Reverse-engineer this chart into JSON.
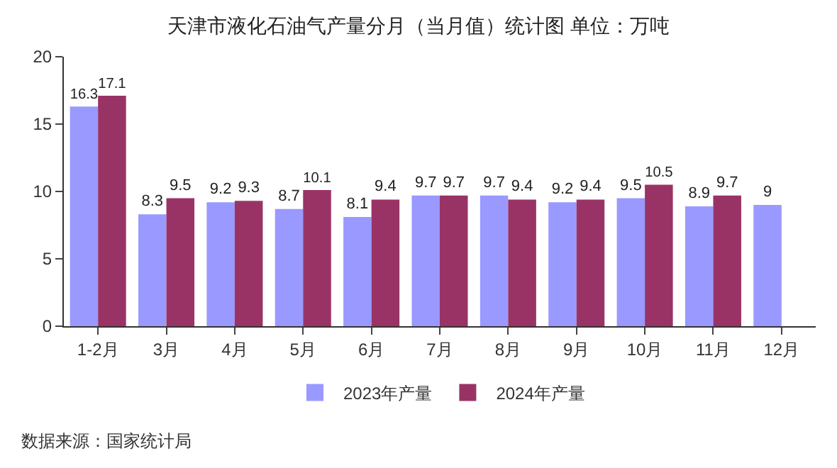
{
  "chart_data": {
    "type": "bar",
    "title": "天津市液化石油气产量分月（当月值）统计图 单位：万吨",
    "categories": [
      "1-2月",
      "3月",
      "4月",
      "5月",
      "6月",
      "7月",
      "8月",
      "9月",
      "10月",
      "11月",
      "12月"
    ],
    "series": [
      {
        "name": "2023年产量",
        "color": "#9999ff",
        "values": [
          16.3,
          8.3,
          9.2,
          8.7,
          8.1,
          9.7,
          9.7,
          9.2,
          9.5,
          8.9,
          9
        ]
      },
      {
        "name": "2024年产量",
        "color": "#993366",
        "values": [
          17.1,
          9.5,
          9.3,
          10.1,
          9.4,
          9.7,
          9.4,
          9.4,
          10.5,
          9.7,
          null
        ]
      }
    ],
    "ylim": [
      0,
      20
    ],
    "yticks": [
      0,
      5,
      10,
      15,
      20
    ],
    "data_labels": true,
    "legend": "bottom",
    "annotations": [
      "数据来源：国家统计局"
    ]
  }
}
